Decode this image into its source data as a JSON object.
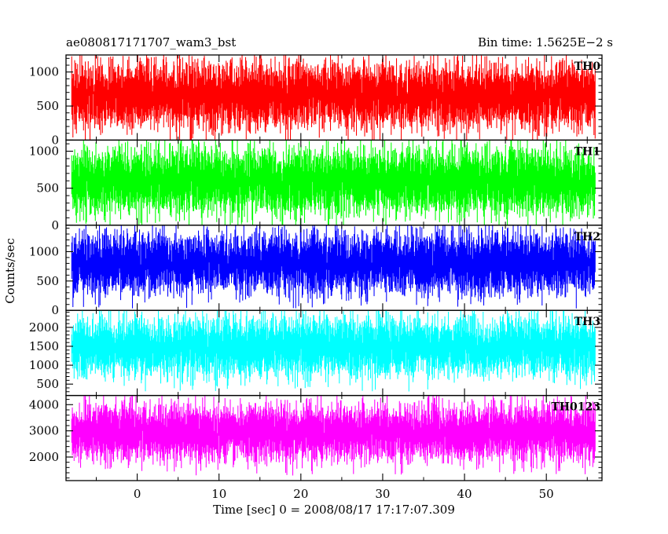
{
  "chart_data": {
    "type": "line",
    "title_left": "ae080817171707_wam3_bst",
    "title_right": "Bin time: 1.5625E−2 s",
    "xlabel": "Time [sec] 0 = 2008/08/17 17:17:07.309",
    "ylabel": "Counts/sec",
    "xlim": [
      -8.7,
      56.8
    ],
    "x_data_range": [
      -8,
      56
    ],
    "x_ticks": [
      0,
      10,
      20,
      30,
      40,
      50
    ],
    "x_tick_labels": [
      "0",
      "10",
      "20",
      "30",
      "40",
      "50"
    ],
    "grid": false,
    "panels": [
      {
        "name": "TH0",
        "color": "#ff0000",
        "ylim": [
          0,
          1250
        ],
        "y_ticks": [
          0,
          500,
          1000
        ],
        "y_tick_labels": [
          "0",
          "500",
          "1000"
        ],
        "signal_range": [
          60,
          1250
        ]
      },
      {
        "name": "TH1",
        "color": "#00ff00",
        "ylim": [
          0,
          1150
        ],
        "y_ticks": [
          0,
          500,
          1000
        ],
        "y_tick_labels": [
          "0",
          "500",
          "1000"
        ],
        "signal_range": [
          30,
          1150
        ]
      },
      {
        "name": "TH2",
        "color": "#0000ff",
        "ylim": [
          0,
          1450
        ],
        "y_ticks": [
          0,
          500,
          1000
        ],
        "y_tick_labels": [
          "0",
          "500",
          "1000"
        ],
        "signal_range": [
          150,
          1450
        ]
      },
      {
        "name": "TH3",
        "color": "#00ffff",
        "ylim": [
          200,
          2450
        ],
        "y_ticks": [
          500,
          1000,
          1500,
          2000
        ],
        "y_tick_labels": [
          "500",
          "1000",
          "1500",
          "2000"
        ],
        "signal_range": [
          500,
          2450
        ]
      },
      {
        "name": "TH0123",
        "color": "#ff00ff",
        "ylim": [
          1100,
          4350
        ],
        "y_ticks": [
          2000,
          3000,
          4000
        ],
        "y_tick_labels": [
          "2000",
          "3000",
          "4000"
        ],
        "signal_range": [
          1550,
          4300
        ]
      }
    ]
  }
}
